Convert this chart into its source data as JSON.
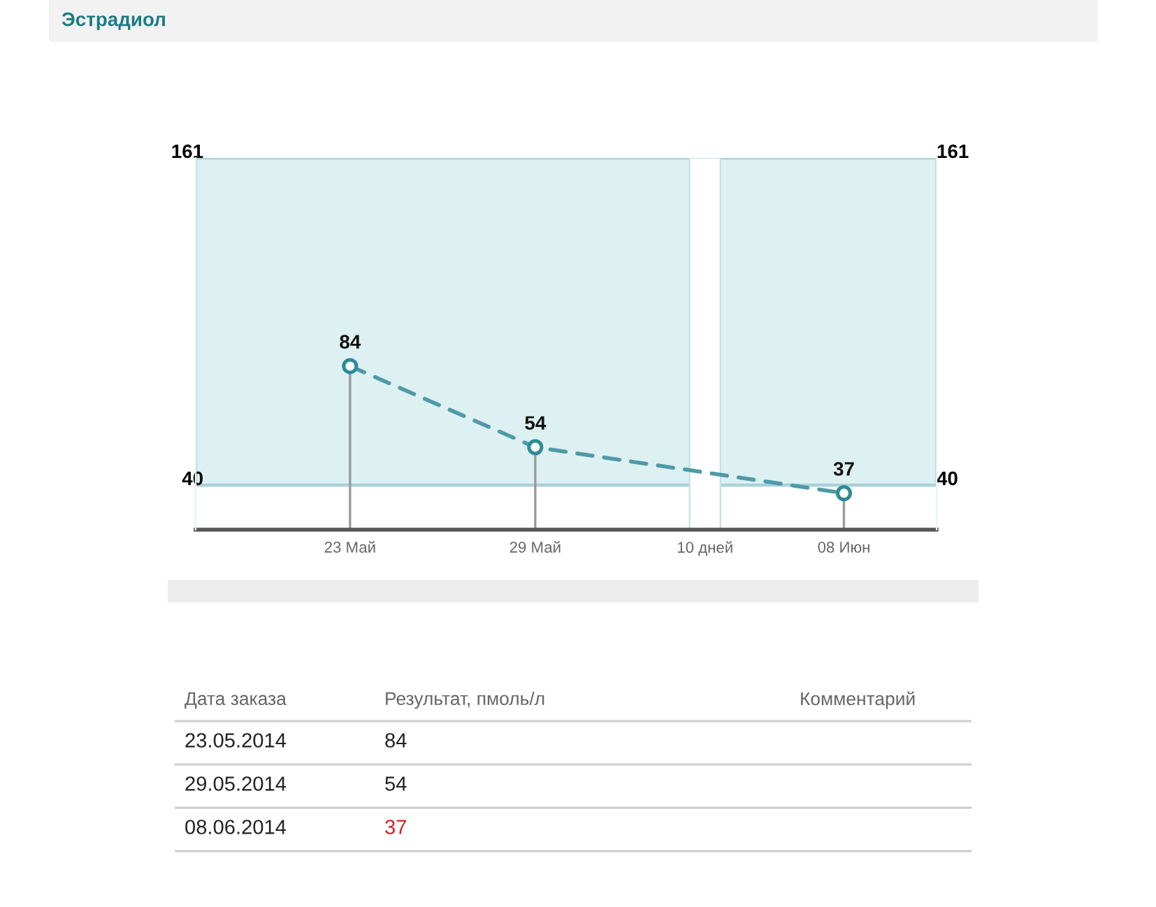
{
  "chart_data": [
    {
      "type": "line",
      "title": "Эстрадиол",
      "x": [
        "2014-05-23",
        "2014-05-29",
        "2014-06-08"
      ],
      "series": [
        {
          "type": "lollipop",
          "color": "#2e8b96",
          "marker": "circle",
          "values": [
            84,
            54,
            37
          ],
          "value_labels": [
            "84",
            "54",
            "37"
          ]
        },
        {
          "type": "line",
          "color": "#4f9aa8",
          "marker": "none",
          "line_style": "dashed",
          "values": [
            84,
            54,
            37
          ]
        }
      ],
      "xlim": [
        "2014-05-18",
        "2014-06-11"
      ],
      "xticks": [
        {
          "value": "2014-05-23",
          "label": "23 Май"
        },
        {
          "value": "2014-05-29",
          "label": "29 Май"
        },
        {
          "value": "2014-06-08",
          "label": "08 Июн"
        }
      ],
      "ylim": [
        23.5,
        161
      ],
      "yticks": [
        40,
        161
      ],
      "y2lim": [
        23.5,
        161
      ],
      "y2ticks": [
        40,
        161
      ],
      "bands": [
        {
          "axis": "y",
          "from": 40,
          "to": 161,
          "color": "#ddf0f2"
        },
        {
          "axis": "x",
          "from": "2014-06-03",
          "to": "2014-06-04",
          "label": "10 дней",
          "color": "#ffffff"
        }
      ]
    },
    {
      "type": "other",
      "annotations": [
        "Дата заказа",
        "Результат, пмоль/л",
        "Комментарий"
      ],
      "categories": [
        "23.05.2014",
        "29.05.2014",
        "08.06.2014"
      ],
      "values": [
        84,
        54,
        37
      ],
      "colors": [
        "#222222",
        "#222222",
        "#cc2222"
      ],
      "data_labels": true
    }
  ]
}
